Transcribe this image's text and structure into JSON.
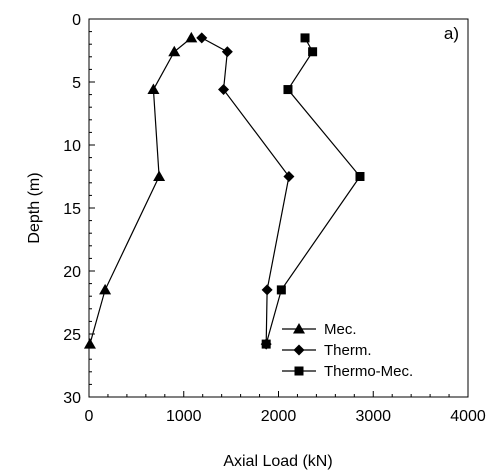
{
  "chart_data": {
    "type": "line",
    "panel_label": "a)",
    "xlabel": "Axial Load (kN)",
    "ylabel": "Depth (m)",
    "xlim": [
      0,
      4000
    ],
    "ylim": [
      0,
      30
    ],
    "y_inverted": true,
    "x_ticks": [
      0,
      1000,
      2000,
      3000,
      4000
    ],
    "x_tick_labels": [
      "0",
      "1000",
      "2000",
      "3000",
      "4000"
    ],
    "y_ticks": [
      0,
      5,
      10,
      15,
      20,
      25,
      30
    ],
    "y_tick_labels": [
      "0",
      "5",
      "10",
      "15",
      "20",
      "25",
      "30"
    ],
    "grid": false,
    "legend_position": "bottom-right",
    "series": [
      {
        "name": "Mec.",
        "marker": "triangle",
        "color": "#000000",
        "points": [
          {
            "x": 1080,
            "y": 1.5
          },
          {
            "x": 900,
            "y": 2.6
          },
          {
            "x": 680,
            "y": 5.6
          },
          {
            "x": 740,
            "y": 12.5
          },
          {
            "x": 170,
            "y": 21.5
          },
          {
            "x": 10,
            "y": 25.8
          }
        ]
      },
      {
        "name": "Therm.",
        "marker": "diamond",
        "color": "#000000",
        "points": [
          {
            "x": 1190,
            "y": 1.5
          },
          {
            "x": 1460,
            "y": 2.6
          },
          {
            "x": 1420,
            "y": 5.6
          },
          {
            "x": 2110,
            "y": 12.5
          },
          {
            "x": 1880,
            "y": 21.5
          },
          {
            "x": 1870,
            "y": 25.8
          }
        ]
      },
      {
        "name": "Thermo-Mec.",
        "marker": "square",
        "color": "#000000",
        "points": [
          {
            "x": 2280,
            "y": 1.5
          },
          {
            "x": 2360,
            "y": 2.6
          },
          {
            "x": 2100,
            "y": 5.6
          },
          {
            "x": 2860,
            "y": 12.5
          },
          {
            "x": 2030,
            "y": 21.5
          },
          {
            "x": 1870,
            "y": 25.8
          }
        ]
      }
    ]
  }
}
